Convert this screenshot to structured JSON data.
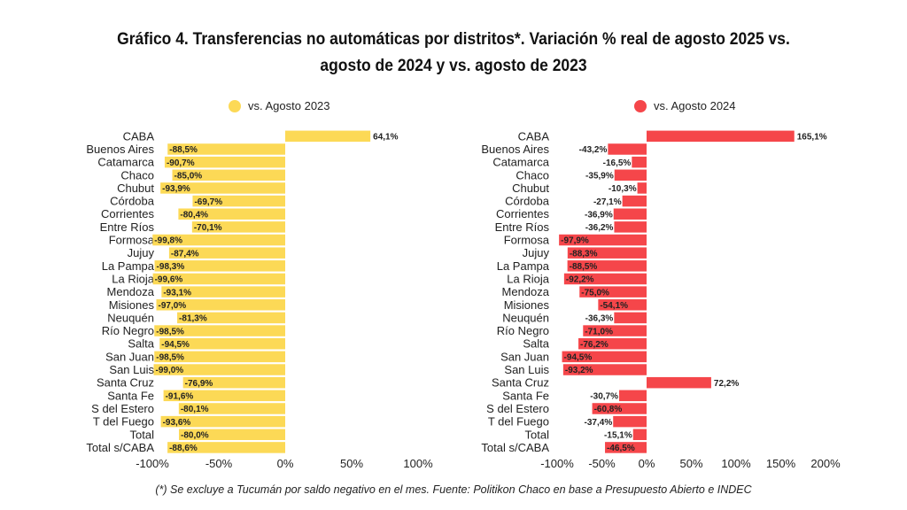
{
  "title_line1": "Gráfico 4. Transferencias no automáticas por distritos*. Variación % real de agosto 2025 vs.",
  "title_line2": "agosto de 2024 y vs. agosto de 2023",
  "footnote": "(*) Se excluye a Tucumán por saldo negativo en el mes. Fuente: Politikon Chaco en base a Presupuesto Abierto e INDEC",
  "chart_data": [
    {
      "type": "bar",
      "orientation": "horizontal",
      "title": "",
      "legend": {
        "label": "vs. Agosto 2023",
        "color": "#FCD956",
        "placement": "top"
      },
      "categories": [
        "CABA",
        "Buenos Aires",
        "Catamarca",
        "Chaco",
        "Chubut",
        "Córdoba",
        "Corrientes",
        "Entre Ríos",
        "Formosa",
        "Jujuy",
        "La Pampa",
        "La Rioja",
        "Mendoza",
        "Misiones",
        "Neuquén",
        "Río Negro",
        "Salta",
        "San Juan",
        "San Luis",
        "Santa Cruz",
        "Santa Fe",
        "S del Estero",
        "T del Fuego",
        "Total",
        "Total s/CABA"
      ],
      "values": [
        64.1,
        -88.5,
        -90.7,
        -85.0,
        -93.9,
        -69.7,
        -80.4,
        -70.1,
        -99.8,
        -87.4,
        -98.3,
        -99.6,
        -93.1,
        -97.0,
        -81.3,
        -98.5,
        -94.5,
        -98.5,
        -99.0,
        -76.9,
        -91.6,
        -80.1,
        -93.6,
        -80.0,
        -88.6
      ],
      "labels": [
        "64,1%",
        "-88,5%",
        "-90,7%",
        "-85,0%",
        "-93,9%",
        "-69,7%",
        "-80,4%",
        "-70,1%",
        "-99,8%",
        "-87,4%",
        "-98,3%",
        "-99,6%",
        "-93,1%",
        "-97,0%",
        "-81,3%",
        "-98,5%",
        "-94,5%",
        "-98,5%",
        "-99,0%",
        "-76,9%",
        "-91,6%",
        "-80,1%",
        "-93,6%",
        "-80,0%",
        "-88,6%"
      ],
      "xlim": [
        -100,
        100
      ],
      "xticks": [
        -100,
        -50,
        0,
        50,
        100
      ],
      "xtick_labels": [
        "-100%",
        "-50%",
        "0%",
        "50%",
        "100%"
      ],
      "xlabel": "",
      "ylabel": "",
      "grid": false
    },
    {
      "type": "bar",
      "orientation": "horizontal",
      "title": "",
      "legend": {
        "label": "vs. Agosto 2024",
        "color": "#F5464A",
        "placement": "top"
      },
      "categories": [
        "CABA",
        "Buenos Aires",
        "Catamarca",
        "Chaco",
        "Chubut",
        "Córdoba",
        "Corrientes",
        "Entre Ríos",
        "Formosa",
        "Jujuy",
        "La Pampa",
        "La Rioja",
        "Mendoza",
        "Misiones",
        "Neuquén",
        "Río Negro",
        "Salta",
        "San Juan",
        "San Luis",
        "Santa Cruz",
        "Santa Fe",
        "S del Estero",
        "T del Fuego",
        "Total",
        "Total s/CABA"
      ],
      "values": [
        165.1,
        -43.2,
        -16.5,
        -35.9,
        -10.3,
        -27.1,
        -36.9,
        -36.2,
        -97.9,
        -88.3,
        -88.5,
        -92.2,
        -75.0,
        -54.1,
        -36.3,
        -71.0,
        -76.2,
        -94.5,
        -93.2,
        72.2,
        -30.7,
        -60.8,
        -37.4,
        -15.1,
        -46.5
      ],
      "labels": [
        "165,1%",
        "-43,2%",
        "-16,5%",
        "-35,9%",
        "-10,3%",
        "-27,1%",
        "-36,9%",
        "-36,2%",
        "-97,9%",
        "-88,3%",
        "-88,5%",
        "-92,2%",
        "-75,0%",
        "-54,1%",
        "-36,3%",
        "-71,0%",
        "-76,2%",
        "-94,5%",
        "-93,2%",
        "72,2%",
        "-30,7%",
        "-60,8%",
        "-37,4%",
        "-15,1%",
        "-46,5%"
      ],
      "xlim": [
        -100,
        200
      ],
      "xticks": [
        -100,
        -50,
        0,
        50,
        100,
        150,
        200
      ],
      "xtick_labels": [
        "-100%",
        "-50%",
        "0%",
        "50%",
        "100%",
        "150%",
        "200%"
      ],
      "xlabel": "",
      "ylabel": "",
      "grid": false
    }
  ]
}
